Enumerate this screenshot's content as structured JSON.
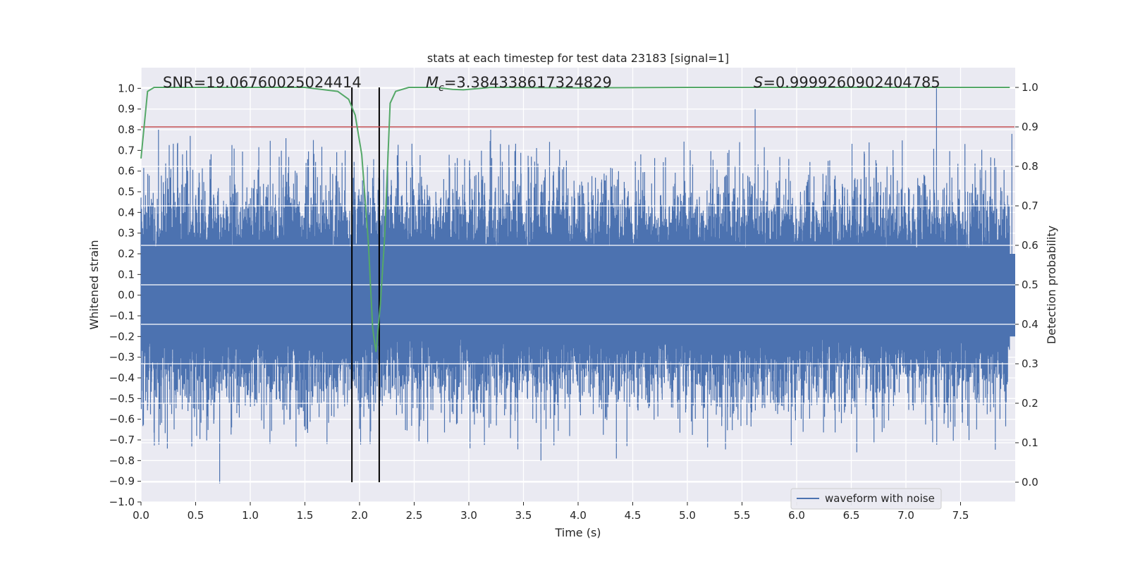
{
  "chart_data": {
    "type": "line",
    "title": "stats at each timestep for test data 23183 [signal=1]",
    "xlabel": "Time (s)",
    "ylabel": "Whitened strain",
    "ylabel_right": "Detection probability",
    "xlim": [
      0.0,
      8.0
    ],
    "ylim": [
      -1.0,
      1.1
    ],
    "ylim_right": [
      -0.05,
      1.05
    ],
    "x_ticks": [
      "0.0",
      "0.5",
      "1.0",
      "1.5",
      "2.0",
      "2.5",
      "3.0",
      "3.5",
      "4.0",
      "4.5",
      "5.0",
      "5.5",
      "6.0",
      "6.5",
      "7.0",
      "7.5"
    ],
    "y_ticks": [
      "-1.0",
      "-0.9",
      "-0.8",
      "-0.7",
      "-0.6",
      "-0.5",
      "-0.4",
      "-0.3",
      "-0.2",
      "-0.1",
      "0.0",
      "0.1",
      "0.2",
      "0.3",
      "0.4",
      "0.5",
      "0.6",
      "0.7",
      "0.8",
      "0.9",
      "1.0"
    ],
    "y_ticks_right": [
      "0.0",
      "0.1",
      "0.2",
      "0.3",
      "0.4",
      "0.5",
      "0.6",
      "0.7",
      "0.8",
      "0.9",
      "1.0"
    ],
    "grid": true,
    "legend": {
      "placement": "lower-right",
      "entries": [
        "waveform with noise"
      ]
    },
    "annotations": {
      "snr": "SNR=19.06760025024414",
      "mc_symbol": "M",
      "mc_sub": "c",
      "mc_value": "=3.384338617324829",
      "s_symbol": "S",
      "s_value": "=0.9999260902404785"
    },
    "event_window": [
      1.93,
      2.18
    ],
    "threshold_right": 0.9,
    "series": [
      {
        "name": "waveform with noise",
        "axis": "left",
        "color": "#4c72b0",
        "envelope": "dense noisy strain, roughly ±0.35 with spikes up to about ±0.9",
        "peak_x": [
          0.16,
          0.45,
          0.72,
          1.84,
          3.2,
          3.66,
          4.35,
          5.62,
          6.55,
          7.28,
          7.97
        ],
        "peak_y": [
          0.8,
          0.77,
          -0.91,
          0.64,
          0.8,
          -0.8,
          -0.79,
          0.9,
          -0.76,
          1.0,
          0.78
        ]
      },
      {
        "name": "",
        "axis": "right",
        "color": "#55a868",
        "x": [
          0.0,
          0.06,
          0.12,
          0.3,
          0.6,
          1.0,
          1.5,
          1.8,
          1.9,
          1.96,
          2.02,
          2.08,
          2.12,
          2.15,
          2.19,
          2.23,
          2.28,
          2.33,
          2.45,
          2.7,
          2.85,
          2.95,
          3.2,
          4.0,
          5.0,
          6.0,
          7.0,
          7.95
        ],
        "y": [
          0.82,
          0.99,
          1.0,
          1.0,
          1.0,
          1.0,
          1.0,
          0.99,
          0.97,
          0.93,
          0.83,
          0.61,
          0.39,
          0.33,
          0.45,
          0.62,
          0.96,
          0.99,
          1.0,
          1.0,
          0.995,
          0.994,
          1.0,
          0.999,
          1.0,
          1.0,
          1.0,
          1.0
        ]
      },
      {
        "name": "",
        "axis": "right",
        "color": "#c44e52",
        "x": [
          0.0,
          8.0
        ],
        "y": [
          0.9,
          0.9
        ]
      }
    ]
  }
}
